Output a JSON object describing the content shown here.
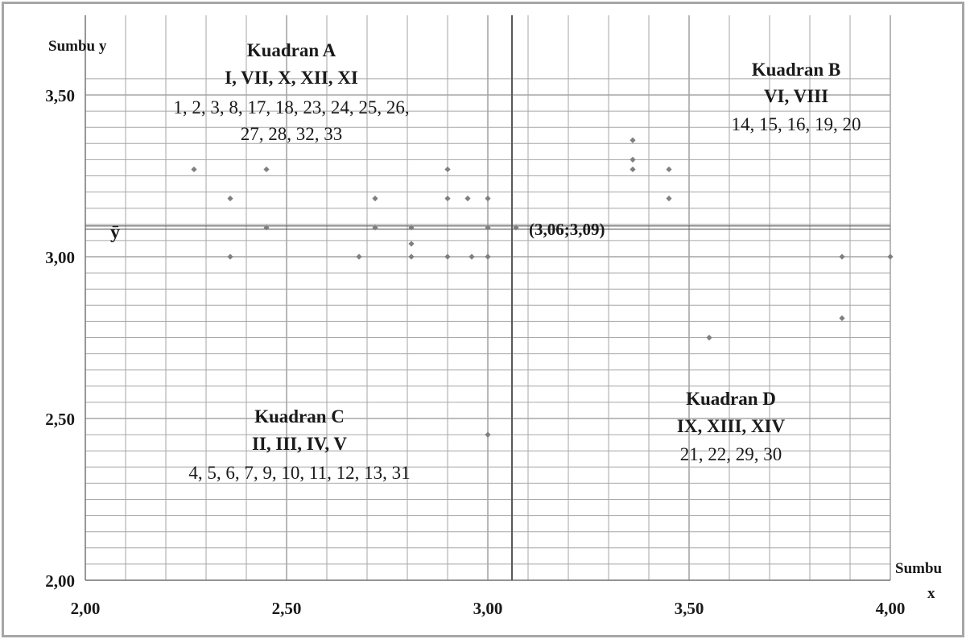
{
  "chart_data": {
    "type": "scatter",
    "xlabel": "Sumbu x",
    "ylabel": "Sumbu y",
    "xlim": [
      2.0,
      4.0
    ],
    "ylim": [
      2.0,
      3.5
    ],
    "x_ticks": [
      "2,00",
      "2,50",
      "3,00",
      "3,50",
      "4,00"
    ],
    "y_ticks": [
      "2,00",
      "2,50",
      "3,00",
      "3,50"
    ],
    "grid": true,
    "mean_x": 3.06,
    "mean_y": 3.09,
    "mean_symbol": "ȳ",
    "intersection_label": "(3,06;3,09)",
    "points": [
      {
        "x": 2.27,
        "y": 3.27
      },
      {
        "x": 2.36,
        "y": 3.18
      },
      {
        "x": 2.36,
        "y": 3.0
      },
      {
        "x": 2.45,
        "y": 3.27
      },
      {
        "x": 2.45,
        "y": 3.09
      },
      {
        "x": 2.68,
        "y": 3.0
      },
      {
        "x": 2.72,
        "y": 3.18
      },
      {
        "x": 2.72,
        "y": 3.09
      },
      {
        "x": 2.81,
        "y": 3.09
      },
      {
        "x": 2.81,
        "y": 3.04
      },
      {
        "x": 2.81,
        "y": 3.0
      },
      {
        "x": 2.9,
        "y": 3.27
      },
      {
        "x": 2.9,
        "y": 3.18
      },
      {
        "x": 2.9,
        "y": 3.0
      },
      {
        "x": 2.95,
        "y": 3.18
      },
      {
        "x": 2.96,
        "y": 3.0
      },
      {
        "x": 3.0,
        "y": 3.18
      },
      {
        "x": 3.0,
        "y": 3.09
      },
      {
        "x": 3.0,
        "y": 3.0
      },
      {
        "x": 3.0,
        "y": 2.45
      },
      {
        "x": 3.07,
        "y": 3.09
      },
      {
        "x": 3.36,
        "y": 3.36
      },
      {
        "x": 3.36,
        "y": 3.3
      },
      {
        "x": 3.36,
        "y": 3.27
      },
      {
        "x": 3.45,
        "y": 3.27
      },
      {
        "x": 3.45,
        "y": 3.18
      },
      {
        "x": 3.55,
        "y": 2.75
      },
      {
        "x": 3.88,
        "y": 3.0
      },
      {
        "x": 3.88,
        "y": 2.81
      },
      {
        "x": 4.0,
        "y": 3.0
      }
    ],
    "annotations": {
      "quadrant_a": {
        "title": "Kuadran A",
        "roman": "I, VII, X, XII, XI",
        "items_1": "1, 2, 3, 8, 17, 18, 23, 24, 25, 26,",
        "items_2": "27, 28, 32, 33"
      },
      "quadrant_b": {
        "title": "Kuadran B",
        "roman": "VI, VIII",
        "items": "14, 15, 16, 19, 20"
      },
      "quadrant_c": {
        "title": "Kuadran C",
        "roman": "II, III, IV, V",
        "items": "4, 5, 6, 7, 9, 10, 11, 12, 13, 31"
      },
      "quadrant_d": {
        "title": "Kuadran D",
        "roman": "IX, XIII, XIV",
        "items": "21, 22, 29, 30"
      }
    },
    "colors": {
      "grid": "#a6a6a6",
      "axis": "#7f7f7f",
      "points": "#7f7f7f",
      "mean_lines": "#595959"
    }
  }
}
